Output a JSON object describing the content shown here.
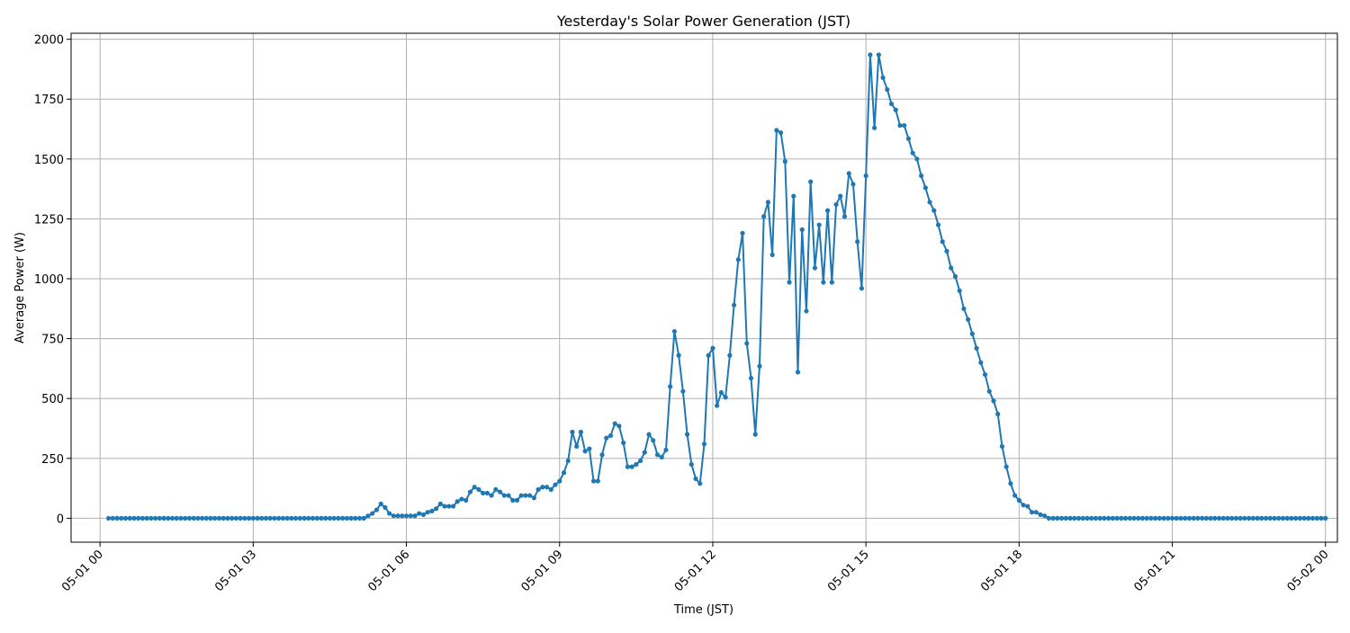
{
  "chart_data": {
    "type": "line",
    "title": "Yesterday's Solar Power Generation (JST)",
    "xlabel": "Time (JST)",
    "ylabel": "Average Power (W)",
    "grid": true,
    "legend": "none",
    "x_start": "05-01 00:10",
    "x_step": "5 min",
    "xlim": [
      "04-30 23:36",
      "05-02 00:24"
    ],
    "ylim": [
      -100,
      2025
    ],
    "x_ticks": [
      "05-01 00",
      "05-01 03",
      "05-01 06",
      "05-01 09",
      "05-01 12",
      "05-01 15",
      "05-01 18",
      "05-01 21",
      "05-02 00"
    ],
    "y_ticks": [
      0,
      250,
      500,
      750,
      1000,
      1250,
      1500,
      1750,
      2000
    ],
    "y_tick_labels": [
      "0",
      "250",
      "500",
      "750",
      "1000",
      "1250",
      "1500",
      "1750",
      "2000"
    ],
    "series": [
      {
        "color": "#1f77b4",
        "values": [
          0,
          0,
          0,
          0,
          0,
          0,
          0,
          0,
          0,
          0,
          0,
          0,
          0,
          0,
          0,
          0,
          0,
          0,
          0,
          0,
          0,
          0,
          0,
          0,
          0,
          0,
          0,
          0,
          0,
          0,
          0,
          0,
          0,
          0,
          0,
          0,
          0,
          0,
          0,
          0,
          0,
          0,
          0,
          0,
          0,
          0,
          0,
          0,
          0,
          0,
          0,
          0,
          0,
          0,
          0,
          0,
          0,
          0,
          0,
          0,
          0,
          10,
          20,
          35,
          60,
          45,
          20,
          10,
          10,
          10,
          10,
          10,
          10,
          20,
          15,
          25,
          30,
          40,
          60,
          50,
          50,
          50,
          70,
          80,
          75,
          110,
          130,
          120,
          105,
          105,
          95,
          120,
          110,
          95,
          95,
          75,
          75,
          95,
          95,
          95,
          85,
          120,
          130,
          130,
          120,
          140,
          155,
          190,
          240,
          360,
          300,
          360,
          280,
          290,
          155,
          155,
          265,
          335,
          345,
          395,
          385,
          315,
          215,
          215,
          225,
          240,
          275,
          350,
          325,
          265,
          255,
          285,
          550,
          780,
          680,
          530,
          350,
          225,
          165,
          145,
          310,
          680,
          710,
          470,
          525,
          505,
          680,
          890,
          1080,
          1190,
          730,
          585,
          350,
          635,
          1260,
          1320,
          1100,
          1620,
          1610,
          1490,
          985,
          1345,
          610,
          1205,
          865,
          1405,
          1045,
          1225,
          985,
          1285,
          985,
          1310,
          1345,
          1260,
          1440,
          1395,
          1155,
          960,
          1430,
          1935,
          1630,
          1935,
          1840,
          1790,
          1730,
          1705,
          1640,
          1640,
          1585,
          1525,
          1500,
          1430,
          1380,
          1320,
          1285,
          1225,
          1155,
          1115,
          1045,
          1010,
          950,
          875,
          830,
          770,
          710,
          650,
          600,
          530,
          490,
          435,
          300,
          215,
          145,
          95,
          75,
          55,
          50,
          25,
          25,
          15,
          10,
          0,
          0,
          0,
          0,
          0,
          0,
          0,
          0,
          0,
          0,
          0,
          0,
          0,
          0,
          0,
          0,
          0,
          0,
          0,
          0,
          0,
          0,
          0,
          0,
          0,
          0,
          0,
          0,
          0,
          0,
          0,
          0,
          0,
          0,
          0,
          0,
          0,
          0,
          0,
          0,
          0,
          0,
          0,
          0,
          0,
          0,
          0,
          0,
          0,
          0,
          0,
          0,
          0,
          0,
          0,
          0,
          0,
          0,
          0,
          0,
          0,
          0,
          0,
          0,
          0,
          0
        ]
      }
    ]
  }
}
